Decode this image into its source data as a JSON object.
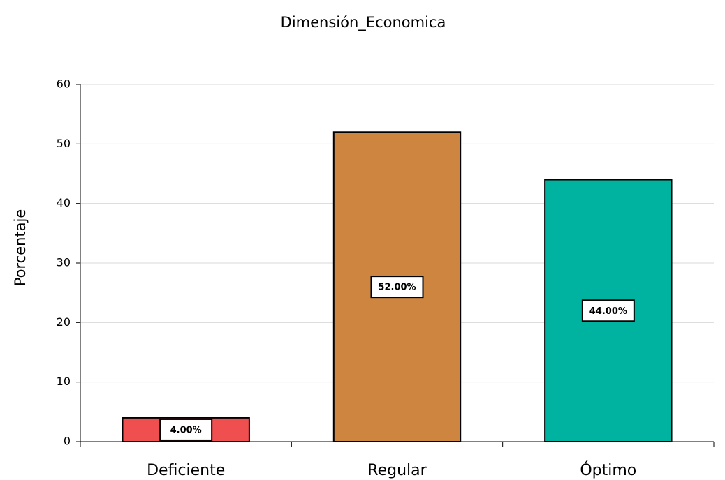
{
  "chart_data": {
    "type": "bar",
    "title": "Dimensión_Economica",
    "y_label": "Porcentaje",
    "categories": [
      "Deficiente",
      "Regular",
      "Óptimo"
    ],
    "values": [
      4,
      52,
      44
    ],
    "value_labels": [
      "4.00%",
      "52.00%",
      "44.00%"
    ],
    "colors": [
      "#ef4f4f",
      "#cd8540",
      "#00b3a0"
    ],
    "ylim": [
      0,
      60
    ],
    "yticks": [
      0,
      10,
      20,
      30,
      40,
      50,
      60
    ],
    "grid": true
  }
}
